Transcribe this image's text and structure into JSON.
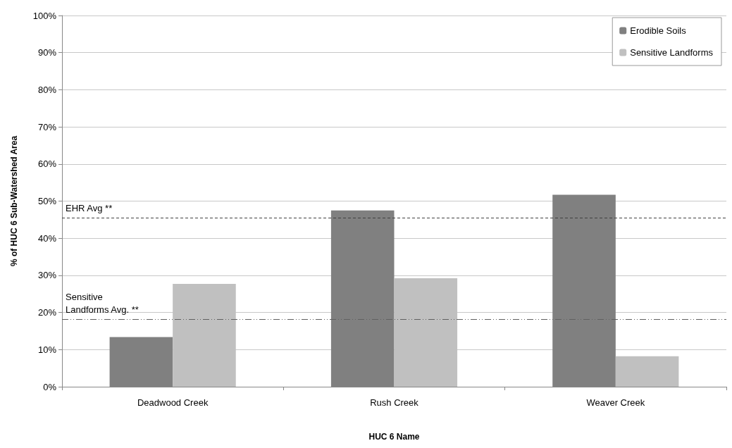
{
  "chart_data": {
    "type": "bar",
    "xlabel": "HUC 6 Name",
    "ylabel": "% of HUC 6 Sub-Watershed Area",
    "categories": [
      "Deadwood Creek",
      "Rush Creek",
      "Weaver Creek"
    ],
    "series": [
      {
        "name": "Erodible Soils",
        "color": "#808080",
        "values": [
          13.4,
          47.5,
          51.7
        ]
      },
      {
        "name": "Sensitive Landforms",
        "color": "#c0c0c0",
        "values": [
          27.7,
          29.2,
          8.2
        ]
      }
    ],
    "ylim": [
      0,
      100
    ],
    "yticks": [
      {
        "value": 0,
        "label": "0%"
      },
      {
        "value": 10,
        "label": "10%"
      },
      {
        "value": 20,
        "label": "20%"
      },
      {
        "value": 30,
        "label": "30%"
      },
      {
        "value": 40,
        "label": "40%"
      },
      {
        "value": 50,
        "label": "50%"
      },
      {
        "value": 60,
        "label": "60%"
      },
      {
        "value": 70,
        "label": "70%"
      },
      {
        "value": 80,
        "label": "80%"
      },
      {
        "value": 90,
        "label": "90%"
      },
      {
        "value": 100,
        "label": "100%"
      }
    ],
    "ref_lines": [
      {
        "axis": "y",
        "value": 45.5,
        "label": "EHR Avg **",
        "color": "#404040",
        "line_style": "dashed"
      },
      {
        "axis": "y",
        "value": 18.2,
        "label": "Sensitive\nLandforms Avg. **",
        "color": "#606060",
        "line_style": "dashdot"
      }
    ],
    "grid": "y",
    "legend": "top right"
  }
}
